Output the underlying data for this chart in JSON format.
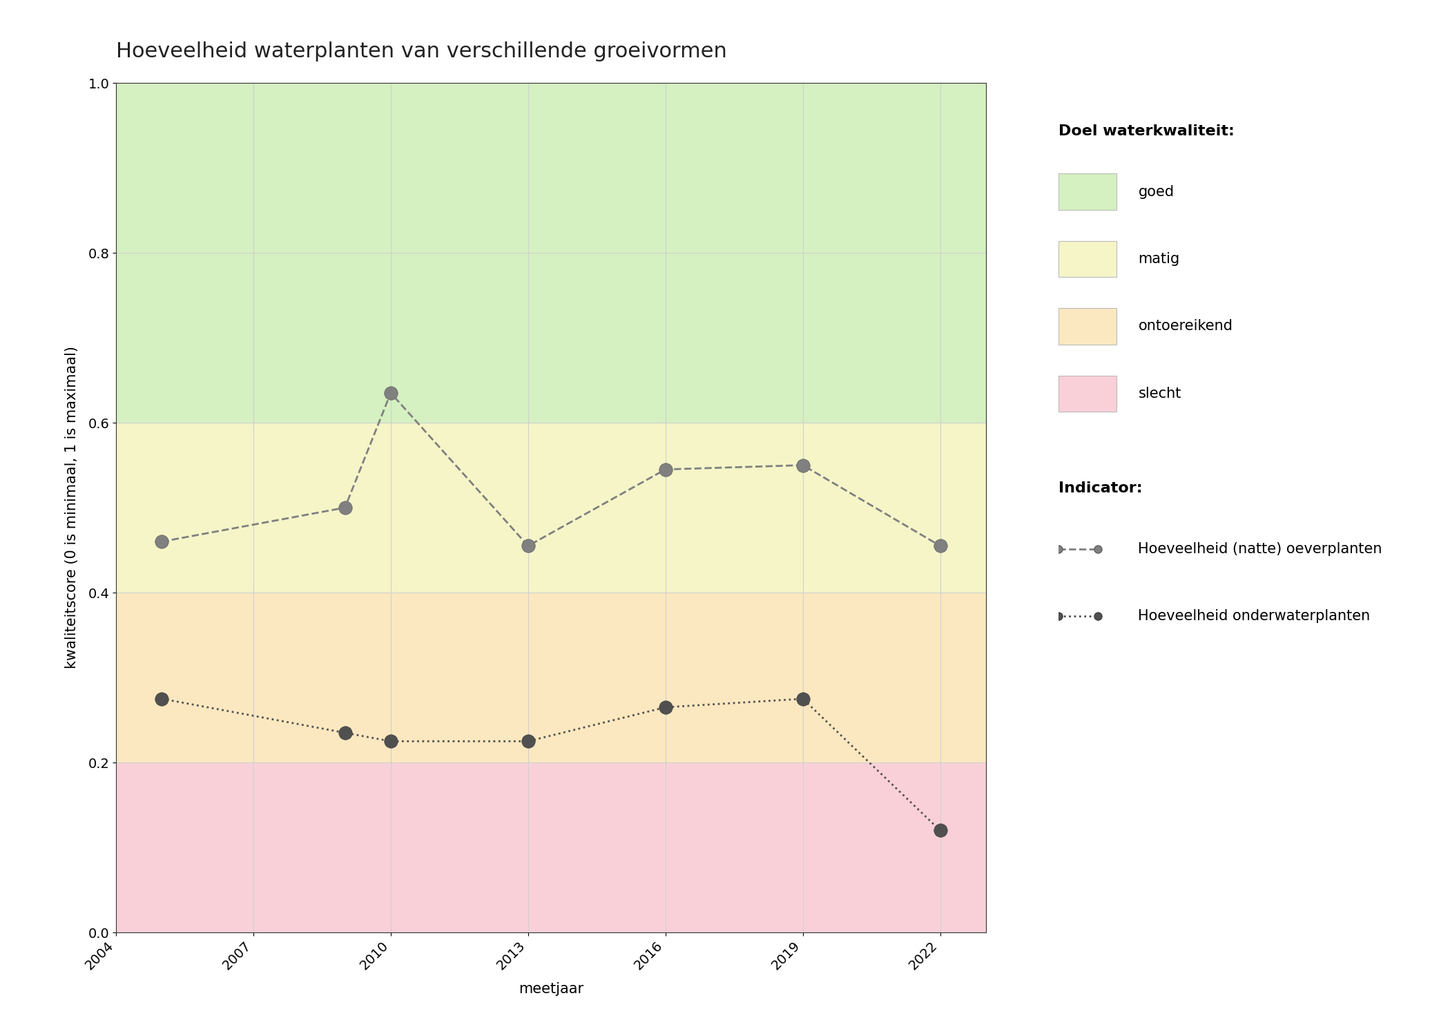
{
  "title": "Hoeveelheid waterplanten van verschillende groeivormen",
  "xlabel": "meetjaar",
  "ylabel": "kwaliteitscore (0 is minimaal, 1 is maximaal)",
  "xlim": [
    2004,
    2023
  ],
  "ylim": [
    0.0,
    1.0
  ],
  "xticks": [
    2004,
    2007,
    2010,
    2013,
    2016,
    2019,
    2022
  ],
  "yticks": [
    0.0,
    0.2,
    0.4,
    0.6,
    0.8,
    1.0
  ],
  "zone_colors": {
    "goed": "#d5f0c1",
    "matig": "#f5f5c8",
    "ontoereikend": "#fce8c0",
    "slecht": "#fad0d8"
  },
  "zone_ranges": {
    "goed": [
      0.6,
      1.0
    ],
    "matig": [
      0.4,
      0.6
    ],
    "ontoereikend": [
      0.2,
      0.4
    ],
    "slecht": [
      0.0,
      0.2
    ]
  },
  "oeverplanten": {
    "years": [
      2005,
      2009,
      2010,
      2013,
      2016,
      2019,
      2022
    ],
    "values": [
      0.46,
      0.5,
      0.635,
      0.455,
      0.545,
      0.55,
      0.455
    ],
    "color": "#808080",
    "linestyle": "--",
    "linewidth": 2.0,
    "markersize": 14,
    "label": "Hoeveelheid (natte) oeverplanten"
  },
  "onderwaterplanten": {
    "years": [
      2005,
      2009,
      2010,
      2013,
      2016,
      2019,
      2022
    ],
    "values": [
      0.275,
      0.235,
      0.225,
      0.225,
      0.265,
      0.275,
      0.12
    ],
    "color": "#505050",
    "linestyle": ":",
    "linewidth": 2.0,
    "markersize": 14,
    "label": "Hoeveelheid onderwaterplanten"
  },
  "legend_title_kwaliteit": "Doel waterkwaliteit:",
  "legend_title_indicator": "Indicator:",
  "grid_color": "#d0d0d0",
  "title_fontsize": 22,
  "axis_label_fontsize": 15,
  "tick_fontsize": 14,
  "legend_fontsize": 15
}
